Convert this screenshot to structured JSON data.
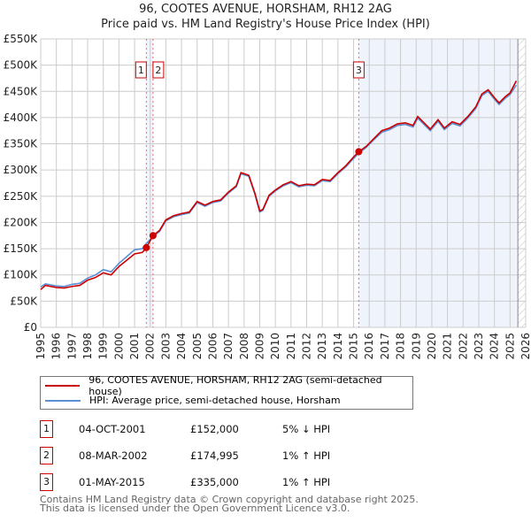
{
  "chart_data": {
    "type": "line",
    "title": "96, COOTES AVENUE, HORSHAM, RH12 2AG",
    "subtitle": "Price paid vs. HM Land Registry's House Price Index (HPI)",
    "xlim": [
      1995,
      2026
    ],
    "ylim": [
      0,
      550000
    ],
    "x_ticks": [
      "1995",
      "1996",
      "1997",
      "1998",
      "1999",
      "2000",
      "2001",
      "2002",
      "2003",
      "2004",
      "2005",
      "2006",
      "2007",
      "2008",
      "2009",
      "2010",
      "2011",
      "2012",
      "2013",
      "2014",
      "2015",
      "2016",
      "2017",
      "2018",
      "2019",
      "2020",
      "2021",
      "2022",
      "2023",
      "2024",
      "2025",
      "2026"
    ],
    "y_ticks": [
      {
        "v": 0,
        "l": "£0"
      },
      {
        "v": 50000,
        "l": "£50K"
      },
      {
        "v": 100000,
        "l": "£100K"
      },
      {
        "v": 150000,
        "l": "£150K"
      },
      {
        "v": 200000,
        "l": "£200K"
      },
      {
        "v": 250000,
        "l": "£250K"
      },
      {
        "v": 300000,
        "l": "£300K"
      },
      {
        "v": 350000,
        "l": "£350K"
      },
      {
        "v": 400000,
        "l": "£400K"
      },
      {
        "v": 450000,
        "l": "£450K"
      },
      {
        "v": 500000,
        "l": "£500K"
      },
      {
        "v": 550000,
        "l": "£550K"
      }
    ],
    "grid": true,
    "series": [
      {
        "name": "96, COOTES AVENUE, HORSHAM, RH12 2AG (semi-detached house)",
        "color": "#cc0000",
        "x": [
          1995,
          1995.3,
          1996,
          1996.5,
          1997,
          1997.5,
          1998,
          1998.5,
          1999,
          1999.5,
          2000,
          2000.5,
          2001,
          2001.5,
          2001.75,
          2002.18,
          2002.6,
          2003,
          2003.5,
          2004,
          2004.5,
          2005,
          2005.5,
          2006,
          2006.5,
          2007,
          2007.5,
          2007.8,
          2008.3,
          2008.7,
          2009,
          2009.2,
          2009.6,
          2010,
          2010.5,
          2011,
          2011.5,
          2012,
          2012.5,
          2013,
          2013.5,
          2014,
          2014.5,
          2015,
          2015.33,
          2015.8,
          2016.3,
          2016.8,
          2017.3,
          2017.8,
          2018.3,
          2018.8,
          2019.1,
          2019.5,
          2019.9,
          2020.4,
          2020.8,
          2021.3,
          2021.8,
          2022.3,
          2022.8,
          2023.2,
          2023.6,
          2024,
          2024.3,
          2024.7,
          2025,
          2025.4
        ],
        "y": [
          72000,
          80000,
          76000,
          75000,
          78000,
          80000,
          90000,
          95000,
          104000,
          100000,
          116000,
          128000,
          140000,
          143000,
          152000,
          174995,
          185000,
          205000,
          213000,
          217000,
          220000,
          240000,
          233000,
          240000,
          243000,
          258000,
          270000,
          295000,
          290000,
          255000,
          222000,
          225000,
          252000,
          262000,
          272000,
          278000,
          270000,
          273000,
          272000,
          282000,
          280000,
          295000,
          308000,
          325000,
          335000,
          345000,
          360000,
          375000,
          380000,
          388000,
          390000,
          385000,
          402000,
          390000,
          378000,
          396000,
          380000,
          392000,
          387000,
          402000,
          420000,
          445000,
          453000,
          438000,
          428000,
          440000,
          447000,
          470000
        ]
      },
      {
        "name": "HPI: Average price, semi-detached house, Horsham",
        "color": "#5b8fd6",
        "x": [
          1995,
          1995.3,
          1996,
          1996.5,
          1997,
          1997.5,
          1998,
          1998.5,
          1999,
          1999.5,
          2000,
          2000.5,
          2001,
          2001.5,
          2001.75,
          2002.18,
          2002.6,
          2003,
          2003.5,
          2004,
          2004.5,
          2005,
          2005.5,
          2006,
          2006.5,
          2007,
          2007.5,
          2007.8,
          2008.3,
          2008.7,
          2009,
          2009.2,
          2009.6,
          2010,
          2010.5,
          2011,
          2011.5,
          2012,
          2012.5,
          2013,
          2013.5,
          2014,
          2014.5,
          2015,
          2015.33,
          2015.8,
          2016.3,
          2016.8,
          2017.3,
          2017.8,
          2018.3,
          2018.8,
          2019.1,
          2019.5,
          2019.9,
          2020.4,
          2020.8,
          2021.3,
          2021.8,
          2022.3,
          2022.8,
          2023.2,
          2023.6,
          2024,
          2024.3,
          2024.7,
          2025,
          2025.4
        ],
        "y": [
          77000,
          83000,
          79000,
          78000,
          82000,
          84000,
          94000,
          100000,
          110000,
          106000,
          122000,
          135000,
          148000,
          150000,
          160000,
          173000,
          183000,
          203000,
          211000,
          215000,
          218000,
          238000,
          231000,
          238000,
          241000,
          256000,
          268000,
          293000,
          288000,
          253000,
          220000,
          223000,
          250000,
          260000,
          270000,
          276000,
          268000,
          271000,
          270000,
          280000,
          278000,
          293000,
          306000,
          322000,
          332000,
          343000,
          358000,
          372000,
          377000,
          385000,
          387000,
          382000,
          399000,
          387000,
          375000,
          393000,
          377000,
          389000,
          384000,
          399000,
          417000,
          442000,
          450000,
          435000,
          425000,
          437000,
          444000,
          462000
        ]
      }
    ],
    "sales": [
      {
        "label": "1",
        "x": 2001.75,
        "price": 152000,
        "date": "04-OCT-2001",
        "price_text": "£152,000",
        "hpi": "5% ↓ HPI"
      },
      {
        "label": "2",
        "x": 2002.18,
        "price": 174995,
        "date": "08-MAR-2002",
        "price_text": "£174,995",
        "hpi": "1% ↑ HPI"
      },
      {
        "label": "3",
        "x": 2015.33,
        "price": 335000,
        "date": "01-MAY-2015",
        "price_text": "£335,000",
        "hpi": "1% ↑ HPI"
      }
    ],
    "shaded_from": 2015.33,
    "forecast_from": 2025.5
  },
  "footer": {
    "line1": "Contains HM Land Registry data © Crown copyright and database right 2025.",
    "line2": "This data is licensed under the Open Government Licence v3.0."
  }
}
